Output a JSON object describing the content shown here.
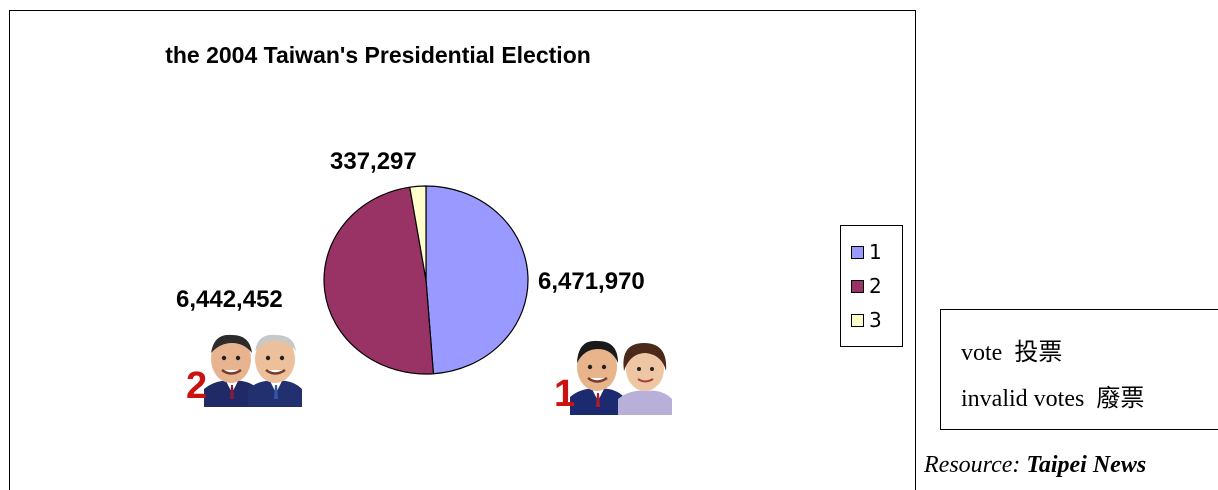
{
  "chart_data": {
    "type": "pie",
    "title": "the 2004 Taiwan's Presidential Election",
    "categories": [
      "1",
      "2",
      "3"
    ],
    "values": [
      6471970,
      6442452,
      337297
    ],
    "data_labels": [
      "6,471,970",
      "6,442,452",
      "337,297"
    ],
    "colors": [
      "#9999ff",
      "#993366",
      "#ffffcc"
    ],
    "legend": {
      "position": "right",
      "entries": [
        "1",
        "2",
        "3"
      ]
    }
  },
  "candidates": [
    {
      "number": "2",
      "icon": "candidate-pair-2-portrait-icon"
    },
    {
      "number": "1",
      "icon": "candidate-pair-1-portrait-icon"
    }
  ],
  "glossary": [
    {
      "term": "vote",
      "translation": "投票"
    },
    {
      "term": "invalid votes",
      "translation": "廢票"
    }
  ],
  "resource": {
    "prefix": "Resource: ",
    "source": "Taipei News"
  }
}
